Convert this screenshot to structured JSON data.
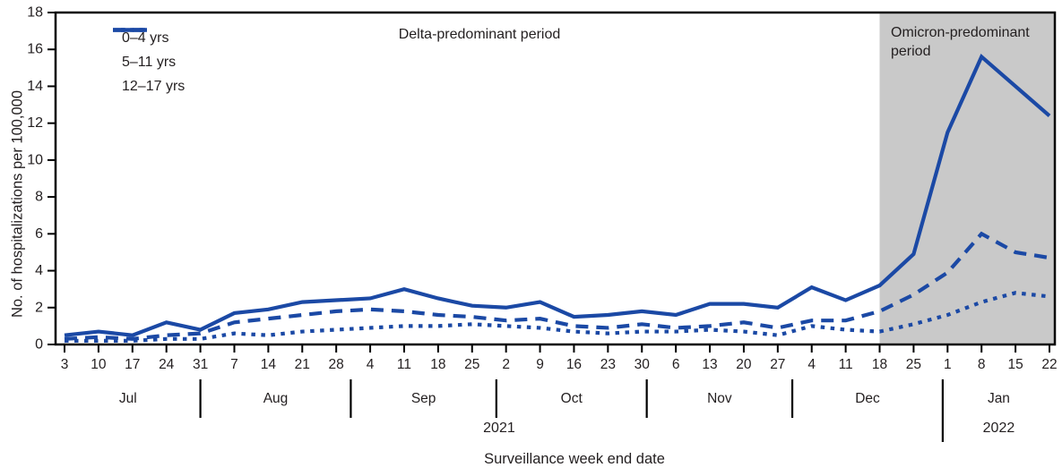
{
  "figure": {
    "y_axis_title": "No. of hospitalizations per 100,000",
    "x_axis_title": "Surveillance week end date",
    "delta_label": "Delta-predominant period",
    "omicron_label": "Omicron-predominant period"
  },
  "chart_data": {
    "type": "line",
    "title": "",
    "xlabel": "Surveillance week end date",
    "ylabel": "No. of hospitalizations per 100,000",
    "ylim": [
      0,
      18
    ],
    "ytick_interval": 2,
    "grid": false,
    "legend_position": "top-left",
    "line_color": "#1b49a5",
    "shade_color": "#c9c9c9",
    "week_labels": [
      "3",
      "10",
      "17",
      "24",
      "31",
      "7",
      "14",
      "21",
      "28",
      "4",
      "11",
      "18",
      "25",
      "2",
      "9",
      "16",
      "23",
      "30",
      "6",
      "13",
      "20",
      "27",
      "4",
      "11",
      "18",
      "25",
      "1",
      "8",
      "15",
      "22"
    ],
    "month_labels": [
      "Jul",
      "Aug",
      "Sep",
      "Oct",
      "Nov",
      "Dec",
      "Jan"
    ],
    "month_boundary_indices": [
      4,
      8.4286,
      12.7143,
      17.1429,
      21.4286,
      25.8571
    ],
    "year_labels": [
      "2021",
      "2022"
    ],
    "annotations": {
      "delta": "Delta-predominant period",
      "omicron": "Omicron-predominant period"
    },
    "shaded_region": {
      "label": "Omicron-predominant period",
      "start_index": 24
    },
    "series": [
      {
        "name": "0–4 yrs",
        "style": "solid",
        "values": [
          0.5,
          0.7,
          0.5,
          1.2,
          0.8,
          1.7,
          1.9,
          2.3,
          2.4,
          2.5,
          3.0,
          2.5,
          2.1,
          2.0,
          2.3,
          1.5,
          1.6,
          1.8,
          1.6,
          2.2,
          2.2,
          2.0,
          3.1,
          2.4,
          3.2,
          4.9,
          11.5,
          15.6,
          14.0,
          12.4
        ]
      },
      {
        "name": "5–11 yrs",
        "style": "dotted",
        "values": [
          0.2,
          0.2,
          0.2,
          0.3,
          0.3,
          0.6,
          0.5,
          0.7,
          0.8,
          0.9,
          1.0,
          1.0,
          1.1,
          1.0,
          0.9,
          0.7,
          0.6,
          0.7,
          0.7,
          0.8,
          0.7,
          0.5,
          1.0,
          0.8,
          0.7,
          1.1,
          1.6,
          2.3,
          2.8,
          2.6
        ]
      },
      {
        "name": "12–17 yrs",
        "style": "dashed",
        "values": [
          0.3,
          0.4,
          0.3,
          0.5,
          0.6,
          1.2,
          1.4,
          1.6,
          1.8,
          1.9,
          1.8,
          1.6,
          1.5,
          1.3,
          1.4,
          1.0,
          0.9,
          1.1,
          0.9,
          1.0,
          1.2,
          0.9,
          1.3,
          1.3,
          1.8,
          2.7,
          3.9,
          6.0,
          5.0,
          4.7
        ]
      }
    ]
  }
}
